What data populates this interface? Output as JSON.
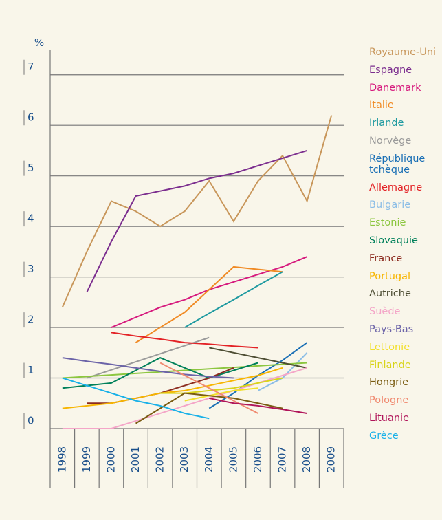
{
  "chart_data": {
    "type": "line",
    "y_unit": "%",
    "categories": [
      "1998",
      "1999",
      "2000",
      "2001",
      "2002",
      "2003",
      "2004",
      "2005",
      "2006",
      "2007",
      "2008",
      "2009"
    ],
    "ylim": [
      0,
      7.5
    ],
    "yticks": [
      0,
      1,
      2,
      3,
      4,
      5,
      6,
      7
    ],
    "grid": true,
    "legend": "right",
    "series": [
      {
        "name": "Royaume-Uni",
        "color": "#c8965a",
        "values": [
          2.4,
          3.5,
          4.5,
          4.3,
          4.0,
          4.3,
          4.9,
          4.1,
          4.9,
          5.4,
          4.5,
          6.2
        ]
      },
      {
        "name": "Espagne",
        "color": "#7b2d8e",
        "values": [
          null,
          2.7,
          3.7,
          4.6,
          4.7,
          4.8,
          4.95,
          5.05,
          5.2,
          5.35,
          5.5,
          null
        ]
      },
      {
        "name": "Danemark",
        "color": "#d6197d",
        "values": [
          null,
          null,
          2.0,
          2.2,
          2.4,
          2.55,
          2.75,
          2.9,
          3.05,
          3.2,
          3.4,
          null
        ]
      },
      {
        "name": "Italie",
        "color": "#f08a24",
        "values": [
          null,
          null,
          null,
          1.7,
          2.0,
          2.3,
          2.75,
          3.2,
          3.15,
          3.1,
          null,
          null
        ]
      },
      {
        "name": "Irlande",
        "color": "#1e9aa0",
        "values": [
          null,
          null,
          null,
          null,
          null,
          2.0,
          2.28,
          2.55,
          2.83,
          3.1,
          null,
          null
        ]
      },
      {
        "name": "Norvège",
        "color": "#9a9a9a",
        "values": [
          null,
          1.0,
          1.16,
          1.32,
          1.48,
          1.64,
          1.8,
          null,
          null,
          null,
          null,
          null
        ]
      },
      {
        "name": "République tchèque",
        "color": "#1a6fb5",
        "values": [
          null,
          null,
          null,
          null,
          null,
          null,
          0.4,
          0.7,
          1.05,
          1.35,
          1.7,
          null
        ]
      },
      {
        "name": "Allemagne",
        "color": "#e32226",
        "values": [
          null,
          null,
          1.9,
          1.83,
          1.77,
          1.7,
          1.67,
          1.63,
          1.6,
          null,
          null,
          null
        ]
      },
      {
        "name": "Bulgarie",
        "color": "#8bbde6",
        "values": [
          null,
          null,
          null,
          null,
          null,
          null,
          null,
          null,
          0.75,
          1.0,
          1.5,
          null
        ]
      },
      {
        "name": "Estonie",
        "color": "#8cc63f",
        "values": [
          1.0,
          1.03,
          1.06,
          1.09,
          1.12,
          1.15,
          1.18,
          1.21,
          1.24,
          1.27,
          1.3,
          null
        ]
      },
      {
        "name": "Slovaquie",
        "color": "#00805a",
        "values": [
          0.8,
          0.85,
          0.9,
          1.15,
          1.4,
          1.2,
          1.0,
          1.15,
          1.3,
          null,
          null,
          null
        ]
      },
      {
        "name": "France",
        "color": "#8b2a1e",
        "values": [
          null,
          0.5,
          0.5,
          0.6,
          0.7,
          0.85,
          1.0,
          1.2,
          null,
          null,
          null,
          null
        ]
      },
      {
        "name": "Portugal",
        "color": "#f7b500",
        "values": [
          0.4,
          0.45,
          0.5,
          0.6,
          0.7,
          0.75,
          0.85,
          0.95,
          1.05,
          1.2,
          null,
          null
        ]
      },
      {
        "name": "Autriche",
        "color": "#4d4d33",
        "values": [
          null,
          null,
          null,
          null,
          null,
          null,
          1.6,
          1.5,
          1.4,
          1.3,
          1.2,
          null
        ]
      },
      {
        "name": "Suède",
        "color": "#f4a6c8",
        "values": [
          0,
          0,
          0,
          0.15,
          0.3,
          0.45,
          0.6,
          0.75,
          0.9,
          1.05,
          1.2,
          null
        ]
      },
      {
        "name": "Pays-Bas",
        "color": "#6b63a8",
        "values": [
          1.4,
          1.33,
          1.27,
          1.2,
          1.13,
          1.07,
          1.03,
          1.0,
          null,
          null,
          null,
          null
        ]
      },
      {
        "name": "Lettonie",
        "color": "#f2e02c",
        "values": [
          null,
          null,
          null,
          null,
          null,
          0.55,
          0.65,
          0.75,
          0.8,
          null,
          null,
          null
        ]
      },
      {
        "name": "Finlande",
        "color": "#d8d41a",
        "values": [
          null,
          null,
          null,
          null,
          0.7,
          0.7,
          0.75,
          0.8,
          0.9,
          1.0,
          null,
          null
        ]
      },
      {
        "name": "Hongrie",
        "color": "#7a5c12",
        "values": [
          null,
          null,
          null,
          0.1,
          0.4,
          0.7,
          0.65,
          0.6,
          0.5,
          0.4,
          null,
          null
        ]
      },
      {
        "name": "Pologne",
        "color": "#f08a70",
        "values": [
          null,
          null,
          null,
          null,
          1.3,
          1.05,
          0.8,
          0.55,
          0.3,
          null,
          null,
          null
        ]
      },
      {
        "name": "Lituanie",
        "color": "#b0155a",
        "values": [
          null,
          null,
          null,
          null,
          null,
          null,
          0.6,
          0.5,
          0.45,
          0.38,
          0.3,
          null
        ]
      },
      {
        "name": "Grèce",
        "color": "#1ab1e8",
        "values": [
          1.0,
          0.85,
          0.7,
          0.55,
          0.45,
          0.3,
          0.2,
          null,
          null,
          null,
          null,
          null
        ]
      }
    ]
  }
}
